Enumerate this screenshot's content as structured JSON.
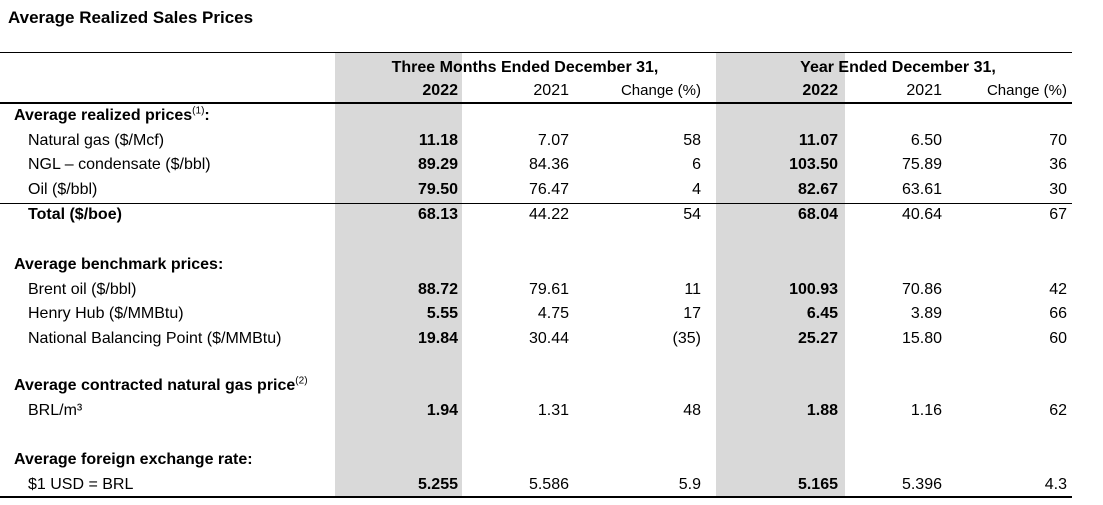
{
  "title": "Average Realized Sales Prices",
  "column_groups": [
    {
      "label": "Three Months Ended December 31,",
      "columns": [
        "2022",
        "2021",
        "Change (%)"
      ]
    },
    {
      "label": "Year Ended December 31,",
      "columns": [
        "2022",
        "2021",
        "Change (%)"
      ]
    }
  ],
  "sections": [
    {
      "heading": "Average realized prices",
      "heading_note": "(1)",
      "heading_suffix": ":",
      "rows": [
        {
          "label": "Natural gas ($/Mcf)",
          "values": [
            "11.18",
            "7.07",
            "58",
            "11.07",
            "6.50",
            "70"
          ]
        },
        {
          "label": "NGL – condensate ($/bbl)",
          "values": [
            "89.29",
            "84.36",
            "6",
            "103.50",
            "75.89",
            "36"
          ]
        },
        {
          "label": "Oil ($/bbl)",
          "values": [
            "79.50",
            "76.47",
            "4",
            "82.67",
            "63.61",
            "30"
          ]
        }
      ],
      "total": {
        "label": "Total ($/boe)",
        "values": [
          "68.13",
          "44.22",
          "54",
          "68.04",
          "40.64",
          "67"
        ]
      }
    },
    {
      "heading": "Average benchmark prices",
      "heading_suffix": ":",
      "rows": [
        {
          "label": "Brent oil ($/bbl)",
          "values": [
            "88.72",
            "79.61",
            "11",
            "100.93",
            "70.86",
            "42"
          ]
        },
        {
          "label": "Henry Hub ($/MMBtu)",
          "values": [
            "5.55",
            "4.75",
            "17",
            "6.45",
            "3.89",
            "66"
          ]
        },
        {
          "label": "National Balancing Point ($/MMBtu)",
          "values": [
            "19.84",
            "30.44",
            "(35)",
            "25.27",
            "15.80",
            "60"
          ]
        }
      ]
    },
    {
      "heading": "Average contracted natural gas price",
      "heading_note": "(2)",
      "rows": [
        {
          "label": "BRL/m³",
          "values": [
            "1.94",
            "1.31",
            "48",
            "1.88",
            "1.16",
            "62"
          ]
        }
      ]
    },
    {
      "heading": "Average foreign exchange rate",
      "heading_suffix": ":",
      "rows": [
        {
          "label": "$1 USD = BRL",
          "values": [
            "5.255",
            "5.586",
            "5.9",
            "5.165",
            "5.396",
            "4.3"
          ]
        }
      ]
    }
  ]
}
